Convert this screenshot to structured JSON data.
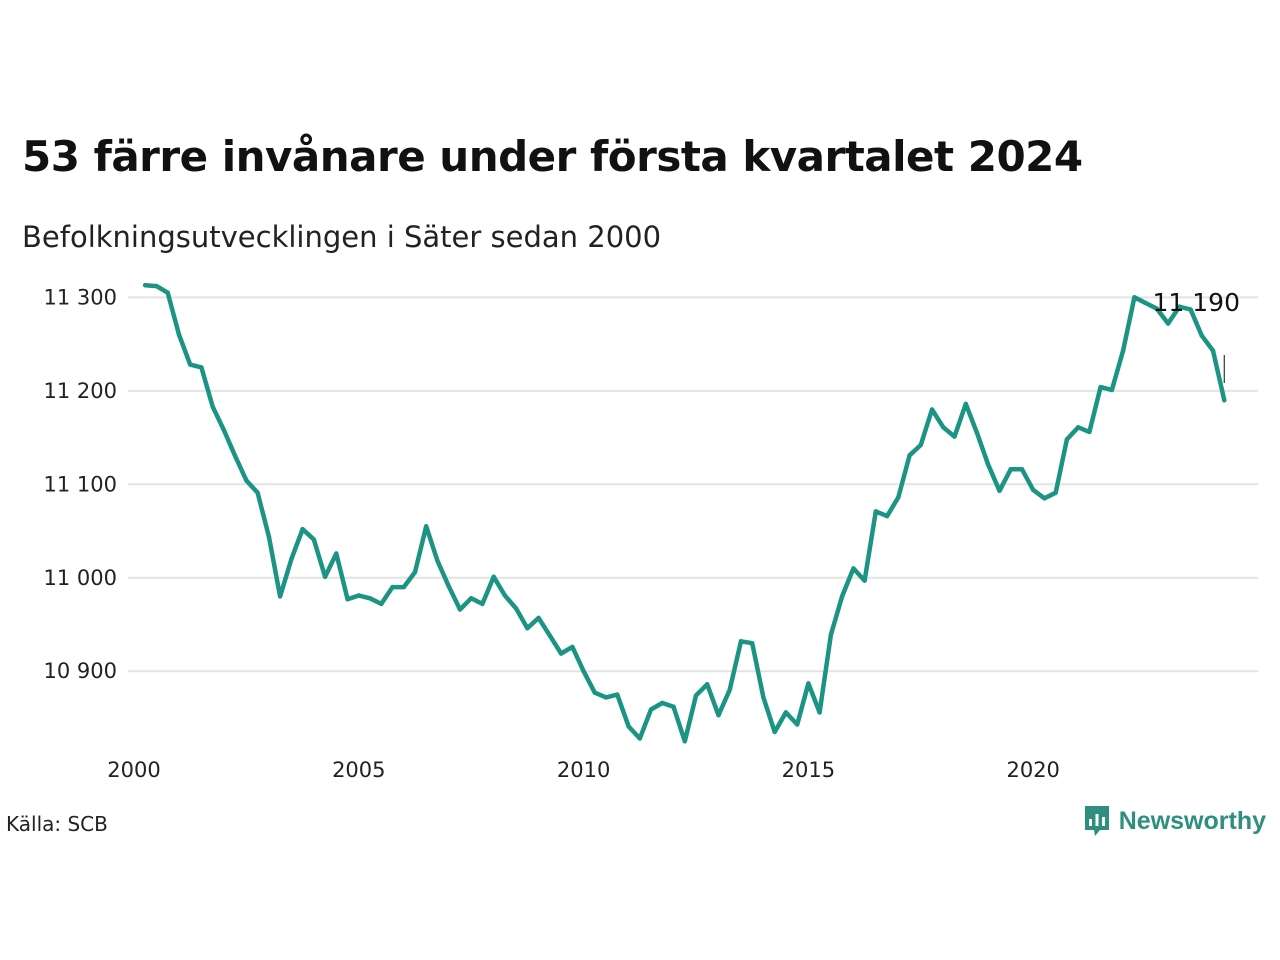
{
  "header": {
    "title": "53 färre invånare under första kvartalet 2024",
    "subtitle": "Befolkningsutvecklingen i Säter sedan 2000"
  },
  "footer": {
    "source": "Källa: SCB",
    "brand": "Newsworthy"
  },
  "colors": {
    "line": "#1b9484",
    "grid": "#e3e3e3",
    "brand": "#2f8f7e"
  },
  "chart_data": {
    "type": "line",
    "title": "53 färre invånare under första kvartalet 2024",
    "subtitle": "Befolkningsutvecklingen i Säter sedan 2000",
    "xlabel": "",
    "ylabel": "",
    "xlim": [
      2000,
      2025
    ],
    "ylim": [
      10820,
      11310
    ],
    "x_ticks": [
      2000,
      2005,
      2010,
      2015,
      2020
    ],
    "x_tick_labels": [
      "2000",
      "2005",
      "2010",
      "2015",
      "2020"
    ],
    "y_ticks": [
      10900,
      11000,
      11100,
      11200,
      11300
    ],
    "y_tick_labels": [
      "10 900",
      "11 000",
      "11 100",
      "11 200",
      "11 300"
    ],
    "grid": "horizontal",
    "end_label": "11 190",
    "series": [
      {
        "x": [
          2000.25,
          2000.5,
          2000.75,
          2001.0,
          2001.25,
          2001.5,
          2001.75,
          2002.0,
          2002.25,
          2002.5,
          2002.75,
          2003.0,
          2003.25,
          2003.5,
          2003.75,
          2004.0,
          2004.25,
          2004.5,
          2004.75,
          2005.0,
          2005.25,
          2005.5,
          2005.75,
          2006.0,
          2006.25,
          2006.5,
          2006.75,
          2007.0,
          2007.25,
          2007.5,
          2007.75,
          2008.0,
          2008.25,
          2008.5,
          2008.75,
          2009.0,
          2009.25,
          2009.5,
          2009.75,
          2010.0,
          2010.25,
          2010.5,
          2010.75,
          2011.0,
          2011.25,
          2011.5,
          2011.75,
          2012.0,
          2012.25,
          2012.5,
          2012.75,
          2013.0,
          2013.25,
          2013.5,
          2013.75,
          2014.0,
          2014.25,
          2014.5,
          2014.75,
          2015.0,
          2015.25,
          2015.5,
          2015.75,
          2016.0,
          2016.25,
          2016.5,
          2016.75,
          2017.0,
          2017.25,
          2017.5,
          2017.75,
          2018.0,
          2018.25,
          2018.5,
          2018.75,
          2019.0,
          2019.25,
          2019.5,
          2019.75,
          2020.0,
          2020.25,
          2020.5,
          2020.75,
          2021.0,
          2021.25,
          2021.5,
          2021.75,
          2022.0,
          2022.25,
          2022.5,
          2022.75,
          2023.0,
          2023.25,
          2023.5,
          2023.75,
          2024.0,
          2024.25
        ],
        "y": [
          11313,
          11312,
          11305,
          11260,
          11228,
          11225,
          11183,
          11158,
          11130,
          11104,
          11091,
          11044,
          10980,
          11020,
          11052,
          11041,
          11001,
          11026,
          10977,
          10981,
          10978,
          10972,
          10990,
          10990,
          11006,
          11055,
          11018,
          10991,
          10966,
          10978,
          10972,
          11001,
          10981,
          10967,
          10946,
          10957,
          10938,
          10919,
          10926,
          10900,
          10877,
          10872,
          10875,
          10841,
          10828,
          10859,
          10866,
          10862,
          10825,
          10874,
          10886,
          10853,
          10880,
          10932,
          10930,
          10872,
          10835,
          10856,
          10843,
          10887,
          10856,
          10939,
          10980,
          11010,
          10997,
          11071,
          11066,
          11086,
          11131,
          11142,
          11180,
          11161,
          11151,
          11186,
          11155,
          11121,
          11093,
          11116,
          11116,
          11094,
          11085,
          11091,
          11148,
          11161,
          11156,
          11204,
          11201,
          11243,
          11300,
          11294,
          11288,
          11272,
          11290,
          11287,
          11259,
          11243,
          11190
        ]
      }
    ]
  }
}
